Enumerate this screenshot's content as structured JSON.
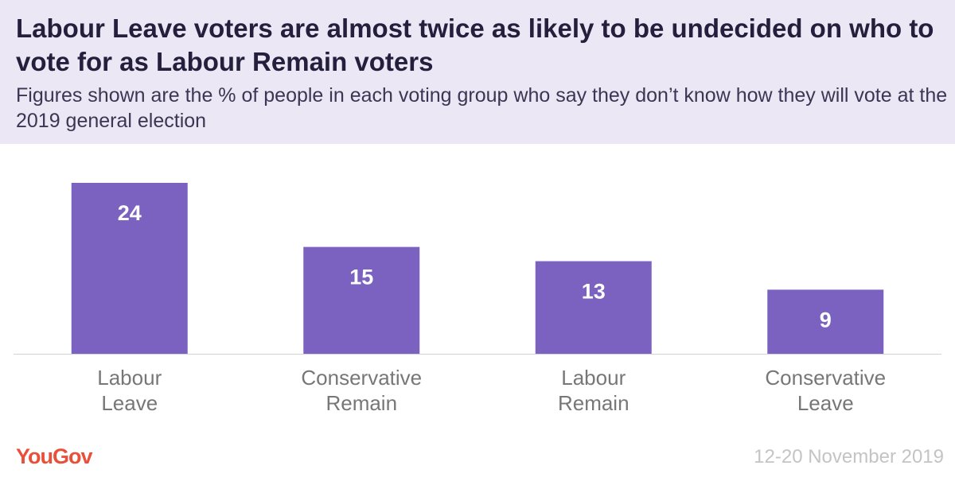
{
  "header": {
    "title": "Labour Leave voters are almost twice as likely to be undecided on who to vote for as Labour Remain voters",
    "subtitle": "Figures shown are the % of people in each voting group who say they don’t know how they will vote at the 2019 general election"
  },
  "footer": {
    "logo_text": "YouGov",
    "date": "12-20 November 2019"
  },
  "colors": {
    "bar": "#7b62c1",
    "header_background": "#ebe7f4",
    "logo": "#e8503a"
  },
  "chart_data": {
    "type": "bar",
    "title": "Labour Leave voters are almost twice as likely to be undecided on who to vote for as Labour Remain voters",
    "subtitle": "Figures shown are the % of people in each voting group who say they don’t know how they will vote at the 2019 general election",
    "categories": [
      [
        "Labour",
        "Leave"
      ],
      [
        "Conservative",
        "Remain"
      ],
      [
        "Labour",
        "Remain"
      ],
      [
        "Conservative",
        "Leave"
      ]
    ],
    "values": [
      24,
      15,
      13,
      9
    ],
    "xlabel": "",
    "ylabel": "",
    "ylim": [
      0,
      24
    ],
    "grid": false,
    "legend": "none",
    "data_labels": "inside-top"
  }
}
